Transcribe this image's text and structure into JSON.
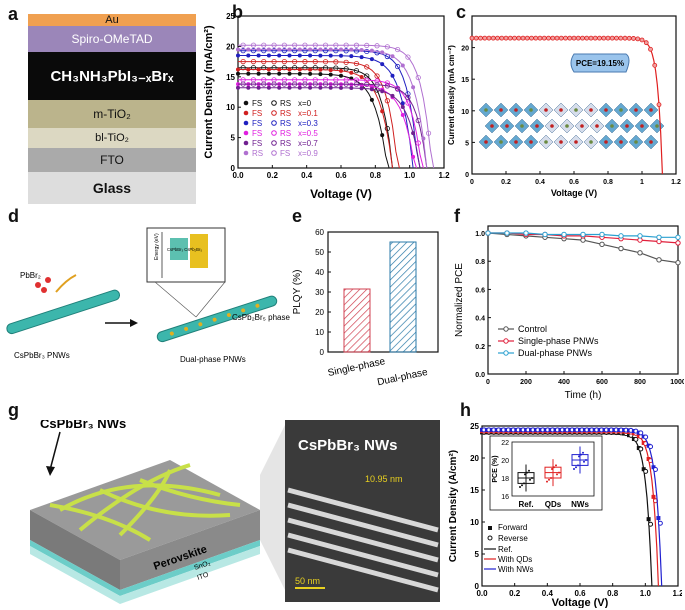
{
  "panel_labels": {
    "a": "a",
    "b": "b",
    "c": "c",
    "d": "d",
    "e": "e",
    "f": "f",
    "g": "g",
    "h": "h"
  },
  "device_stack": {
    "layers": [
      {
        "label": "Au",
        "color": "#f0a050"
      },
      {
        "label": "Spiro-OMeTAD",
        "color": "#9b86b9"
      },
      {
        "label": "CH₃NH₃PbI₃₋ₓBrₓ",
        "color": "#0a0a0a"
      },
      {
        "label": "m-TiO₂",
        "color": "#bbb48c"
      },
      {
        "label": "bl-TiO₂",
        "color": "#dcd8c2"
      },
      {
        "label": "FTO",
        "color": "#aaaaaa"
      },
      {
        "label": "Glass",
        "color": "#dddddd"
      }
    ]
  },
  "chart_data": [
    {
      "id": "b",
      "type": "line",
      "xlabel": "Voltage (V)",
      "ylabel": "Current Density (mA/cm²)",
      "xlim": [
        0,
        1.2
      ],
      "ylim": [
        0,
        25
      ],
      "xticks": [
        "0.0",
        "0.2",
        "0.4",
        "0.6",
        "0.8",
        "1.0",
        "1.2"
      ],
      "yticks": [
        "0",
        "5",
        "10",
        "15",
        "20",
        "25"
      ],
      "legend_fs": [
        "FS",
        "FS",
        "FS",
        "FS",
        "FS",
        "RS"
      ],
      "legend_rs": [
        "RS",
        "RS",
        "RS",
        "RS",
        "RS",
        "FS"
      ],
      "legend_x": [
        "x=0",
        "x=0.1",
        "x=0.3",
        "x=0.5",
        "x=0.7",
        "x=0.9"
      ],
      "series": [
        {
          "name": "x=0",
          "color": "#111111",
          "jsc": 16.5,
          "voc": 0.9,
          "fs_jsc": 15.5,
          "fs_voc": 0.87
        },
        {
          "name": "x=0.1",
          "color": "#d02020",
          "jsc": 17.5,
          "voc": 0.93,
          "fs_jsc": 16.2,
          "fs_voc": 0.9
        },
        {
          "name": "x=0.3",
          "color": "#2020c0",
          "jsc": 19.3,
          "voc": 1.05,
          "fs_jsc": 18.5,
          "fs_voc": 1.02
        },
        {
          "name": "x=0.5",
          "color": "#e020e0",
          "jsc": 14.5,
          "voc": 1.07,
          "fs_jsc": 13.8,
          "fs_voc": 1.03
        },
        {
          "name": "x=0.7",
          "color": "#702090",
          "jsc": 13.8,
          "voc": 1.1,
          "fs_jsc": 13.2,
          "fs_voc": 1.06
        },
        {
          "name": "x=0.9",
          "color": "#b070d0",
          "jsc": 20.2,
          "voc": 1.13,
          "fs_jsc": 19.5,
          "fs_voc": 1.1
        }
      ]
    },
    {
      "id": "c",
      "type": "line",
      "xlabel": "Voltage (V)",
      "ylabel": "Current density (mA cm⁻²)",
      "xlim": [
        0,
        1.2
      ],
      "ylim": [
        0,
        25
      ],
      "xticks": [
        "0",
        "0.2",
        "0.4",
        "0.6",
        "0.8",
        "1",
        "1.2"
      ],
      "yticks": [
        "0",
        "5",
        "10",
        "15",
        "20"
      ],
      "annotation": "PCE=19.15%",
      "series": [
        {
          "name": "J-V",
          "color": "#e02020",
          "jsc": 21.5,
          "voc": 1.12
        }
      ]
    },
    {
      "id": "e",
      "type": "bar",
      "ylabel": "PLQY (%)",
      "ylim": [
        0,
        60
      ],
      "yticks": [
        "0",
        "10",
        "20",
        "30",
        "40",
        "50",
        "60"
      ],
      "categories": [
        "Single-phase",
        "Dual-phase"
      ],
      "values": [
        31.5,
        55
      ]
    },
    {
      "id": "f",
      "type": "line",
      "xlabel": "Time (h)",
      "ylabel": "Normalized PCE",
      "xlim": [
        0,
        1000
      ],
      "ylim": [
        0,
        1.05
      ],
      "xticks": [
        "0",
        "200",
        "400",
        "600",
        "800",
        "1000"
      ],
      "yticks": [
        "0.0",
        "0.2",
        "0.4",
        "0.6",
        "0.8",
        "1.0"
      ],
      "x": [
        0,
        100,
        200,
        300,
        400,
        500,
        600,
        700,
        800,
        900,
        1000
      ],
      "series": [
        {
          "name": "Control",
          "color": "#555555",
          "values": [
            1.0,
            0.99,
            0.98,
            0.97,
            0.96,
            0.95,
            0.92,
            0.89,
            0.86,
            0.81,
            0.79
          ]
        },
        {
          "name": "Single-phase PNWs",
          "color": "#e0203c",
          "values": [
            1.0,
            1.0,
            0.99,
            0.99,
            0.98,
            0.98,
            0.97,
            0.96,
            0.95,
            0.94,
            0.93
          ]
        },
        {
          "name": "Dual-phase PNWs",
          "color": "#2aa0d0",
          "values": [
            1.0,
            1.0,
            1.0,
            0.99,
            0.99,
            0.99,
            0.99,
            0.98,
            0.98,
            0.97,
            0.97
          ]
        }
      ]
    },
    {
      "id": "h",
      "type": "line",
      "xlabel": "Voltage (V)",
      "ylabel": "Current Density (A/cm²)",
      "xlim": [
        0,
        1.2
      ],
      "ylim": [
        0,
        25
      ],
      "xticks": [
        "0.0",
        "0.2",
        "0.4",
        "0.6",
        "0.8",
        "1.0",
        "1.2"
      ],
      "yticks": [
        "0",
        "5",
        "10",
        "15",
        "20",
        "25"
      ],
      "legend": [
        "Forward",
        "Reverse",
        "Ref.",
        "With QDs",
        "With NWs"
      ],
      "series": [
        {
          "name": "Ref.",
          "color": "#111111",
          "jsc": 24.0,
          "voc": 1.04
        },
        {
          "name": "With QDs",
          "color": "#e02020",
          "jsc": 24.2,
          "voc": 1.08
        },
        {
          "name": "With NWs",
          "color": "#2020d0",
          "jsc": 24.4,
          "voc": 1.1
        }
      ],
      "inset": {
        "ylabel": "PCE (%)",
        "ylim": [
          16,
          22
        ],
        "yticks": [
          "16",
          "18",
          "20",
          "22"
        ],
        "categories": [
          "Ref.",
          "QDs",
          "NWs"
        ],
        "medians": [
          18.0,
          18.6,
          20.0
        ],
        "colors": [
          "#111111",
          "#e02020",
          "#2020d0"
        ]
      }
    }
  ],
  "panel_d": {
    "left_label": "CsPbBr₃ PNWs",
    "right_label": "Dual-phase PNWs",
    "reagent": "PbBr₂",
    "phase_label": "CsPb₂Br₅ phase",
    "energy_label": "Energy (eV)",
    "band_label": "CsPbBr₃ CsPb₂Br₅"
  },
  "panel_g": {
    "title": "CsPbBr₃ NWs",
    "tem_title": "CsPbBr₃ NWs",
    "perovskite": "Perovskite",
    "sno2": "SnO₂",
    "ito": "ITO",
    "measure": "10.95 nm",
    "scale": "50 nm"
  }
}
